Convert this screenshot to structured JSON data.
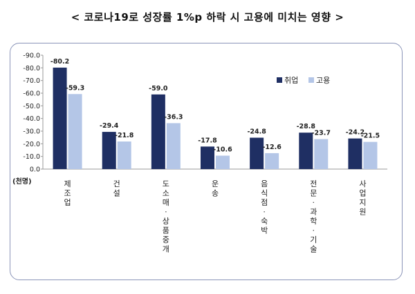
{
  "title": "< 코로나19로 성장률 1%p 하락 시 고용에 미치는 영향 >",
  "unit_label": "(천명)",
  "chart_data": {
    "type": "bar",
    "categories": [
      "제조업",
      "건설",
      "도소매·상품중개",
      "운송",
      "음식점·숙박",
      "전문·과학·기술",
      "사업지원"
    ],
    "series": [
      {
        "name": "취업",
        "values": [
          -80.2,
          -29.4,
          -59.0,
          -17.8,
          -24.8,
          -28.8,
          -24.2
        ],
        "color": "#1f2f63"
      },
      {
        "name": "고용",
        "values": [
          -59.3,
          -21.8,
          -36.3,
          -10.6,
          -12.6,
          -23.7,
          -21.5
        ],
        "color": "#b4c6e7"
      }
    ],
    "y_ticks": [
      "-90.0",
      "-80.0",
      "-70.0",
      "-60.0",
      "-50.0",
      "-40.0",
      "-30.0",
      "-20.0",
      "-10.0",
      "0.0"
    ],
    "ylim": [
      0,
      -90
    ],
    "axis_inverted": true,
    "legend_position": "top-right",
    "grid": false
  }
}
